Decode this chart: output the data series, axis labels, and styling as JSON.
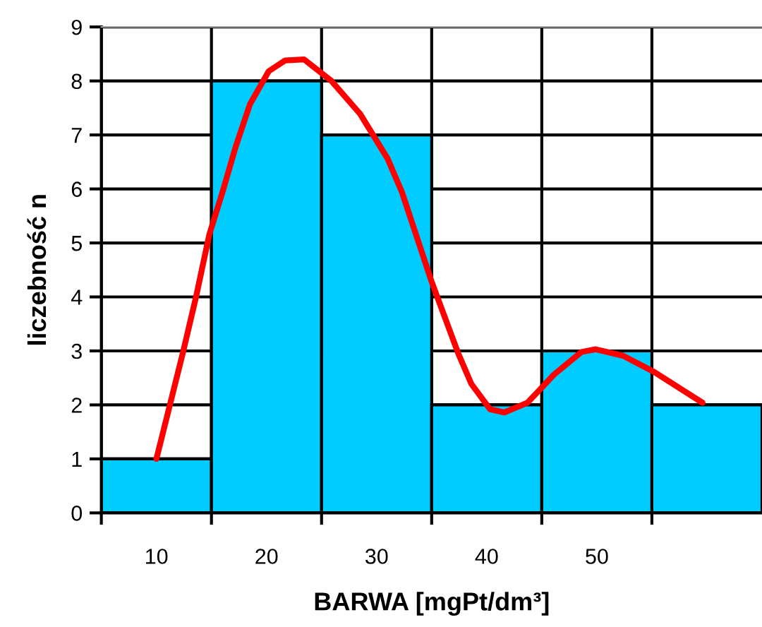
{
  "chart_data": {
    "type": "histogram",
    "xlabel": "BARWA [mgPt/dm³]",
    "ylabel": "liczebność n",
    "series": [
      {
        "bins": [
          5,
          15,
          25,
          35,
          45,
          55,
          65
        ],
        "values": [
          1,
          8,
          7,
          2,
          3,
          2
        ],
        "color": "#00ccff"
      },
      {
        "type": "line",
        "color": "#ff0000",
        "x": [
          10,
          12.4,
          13.6,
          14.8,
          16.0,
          17.2,
          18.5,
          20.2,
          21.7,
          23.4,
          25.9,
          28.5,
          31.0,
          32.3,
          35.0,
          37.4,
          38.6,
          40.3,
          41.6,
          43.7,
          46.1,
          48.6,
          49.9,
          52.4,
          55.2,
          59.6
        ],
        "values": [
          1,
          2.96,
          4.0,
          5.15,
          5.94,
          6.78,
          7.57,
          8.18,
          8.38,
          8.4,
          8.0,
          7.39,
          6.56,
          5.94,
          4.28,
          2.96,
          2.39,
          1.92,
          1.86,
          2.04,
          2.56,
          2.98,
          3.03,
          2.91,
          2.61,
          2.04
        ]
      }
    ],
    "xlim": [
      5,
      65
    ],
    "ylim": [
      0,
      9
    ],
    "xticks": [
      {
        "value": 5,
        "label": null
      },
      {
        "value": 10,
        "label": "10"
      },
      {
        "value": 15,
        "label": null
      },
      {
        "value": 20,
        "label": "20"
      },
      {
        "value": 25,
        "label": null
      },
      {
        "value": 30,
        "label": "30"
      },
      {
        "value": 35,
        "label": null
      },
      {
        "value": 40,
        "label": "40"
      },
      {
        "value": 45,
        "label": null
      },
      {
        "value": 50,
        "label": "50"
      },
      {
        "value": 55,
        "label": null
      }
    ],
    "yticks": [
      0,
      1,
      2,
      3,
      4,
      5,
      6,
      7,
      8,
      9
    ],
    "grid": true
  }
}
